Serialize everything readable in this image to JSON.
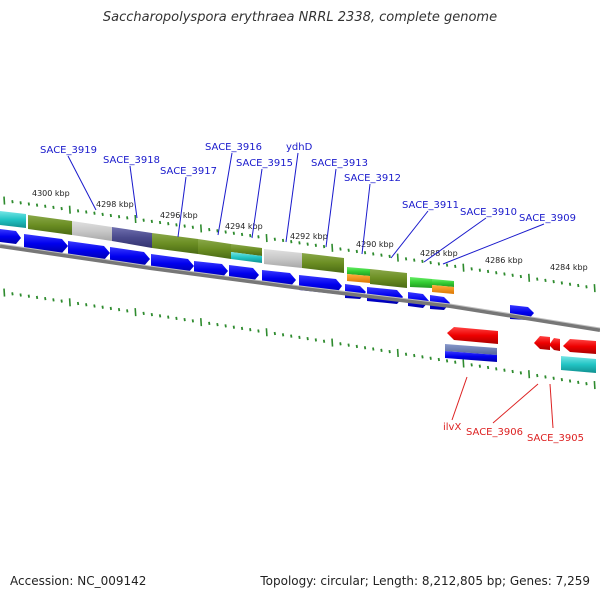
{
  "title": "Saccharopolyspora erythraea NRRL 2338, complete genome",
  "footer": {
    "accession": "Accession: NC_009142",
    "summary": "Topology: circular; Length: 8,212,805 bp; Genes: 7,259"
  },
  "colors": {
    "forward_label": "#1a1acc",
    "reverse_label": "#dd2222",
    "tick": "#2e8b2e",
    "backbone": "#888888"
  },
  "kbp_labels": [
    "4300 kbp",
    "4298 kbp",
    "4296 kbp",
    "4294 kbp",
    "4292 kbp",
    "4290 kbp",
    "4288 kbp",
    "4286 kbp",
    "4284 kbp"
  ],
  "forward_genes": [
    "SACE_3919",
    "SACE_3918",
    "SACE_3917",
    "SACE_3916",
    "SACE_3915",
    "ydhD",
    "SACE_3913",
    "SACE_3912",
    "SACE_3911",
    "SACE_3910",
    "SACE_3909"
  ],
  "reverse_genes": [
    "ilvX",
    "SACE_3906",
    "SACE_3905"
  ]
}
